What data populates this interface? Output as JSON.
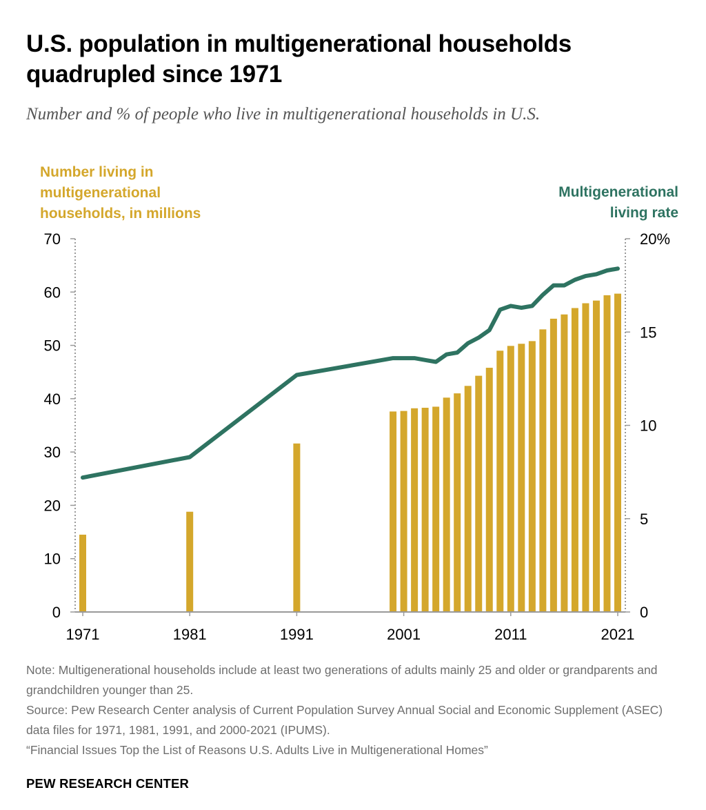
{
  "title": "U.S. population in multigenerational households quadrupled since 1971",
  "subtitle": "Number and % of people who live in multigenerational households in U.S.",
  "colors": {
    "bars": "#d4a72c",
    "line": "#2e7361",
    "axis": "#999999",
    "text": "#000000",
    "note": "#6e6e6e"
  },
  "chart_data": {
    "type": "bar",
    "left_axis_label": [
      "Number living in",
      "multigenerational",
      "households, in millions"
    ],
    "right_axis_label": [
      "Multigenerational",
      "living rate"
    ],
    "x_ticks": [
      "1971",
      "1981",
      "1991",
      "2001",
      "2011",
      "2021"
    ],
    "y_left_ticks": [
      "0",
      "10",
      "20",
      "30",
      "40",
      "50",
      "60",
      "70"
    ],
    "y_right_ticks": [
      "0",
      "5",
      "10",
      "15",
      "20%"
    ],
    "y_left_lim": [
      0,
      70
    ],
    "y_right_lim": [
      0,
      20
    ],
    "grid": false,
    "series": [
      {
        "name": "Number living in multigenerational households, in millions",
        "type": "bar",
        "axis": "left",
        "x": [
          1971,
          1981,
          1991,
          2000,
          2001,
          2002,
          2003,
          2004,
          2005,
          2006,
          2007,
          2008,
          2009,
          2010,
          2011,
          2012,
          2013,
          2014,
          2015,
          2016,
          2017,
          2018,
          2019,
          2020,
          2021
        ],
        "values": [
          14.5,
          18.8,
          31.6,
          37.6,
          37.7,
          38.2,
          38.3,
          38.5,
          40.2,
          41.0,
          42.4,
          44.3,
          45.8,
          49.0,
          49.9,
          50.3,
          50.8,
          53.0,
          55.0,
          55.8,
          57.0,
          57.9,
          58.4,
          59.4,
          59.7
        ]
      },
      {
        "name": "Multigenerational living rate",
        "type": "line",
        "axis": "right",
        "x": [
          1971,
          1981,
          1991,
          2000,
          2001,
          2002,
          2003,
          2004,
          2005,
          2006,
          2007,
          2008,
          2009,
          2010,
          2011,
          2012,
          2013,
          2014,
          2015,
          2016,
          2017,
          2018,
          2019,
          2020,
          2021
        ],
        "values": [
          7.2,
          8.3,
          12.7,
          13.6,
          13.6,
          13.6,
          13.5,
          13.4,
          13.8,
          13.9,
          14.4,
          14.7,
          15.1,
          16.2,
          16.4,
          16.3,
          16.4,
          17.0,
          17.5,
          17.5,
          17.8,
          18.0,
          18.1,
          18.3,
          18.4
        ]
      }
    ]
  },
  "note": "Note: Multigenerational households include at least two generations of adults mainly 25 and older or grandparents and grandchildren younger than 25.",
  "source": "Source: Pew Research Center analysis of Current Population Survey Annual Social and Economic Supplement (ASEC) data files for 1971, 1981, 1991, and 2000-2021 (IPUMS).",
  "report": "“Financial Issues Top the List of Reasons U.S. Adults Live in Multigenerational Homes”",
  "footer": "PEW RESEARCH CENTER"
}
